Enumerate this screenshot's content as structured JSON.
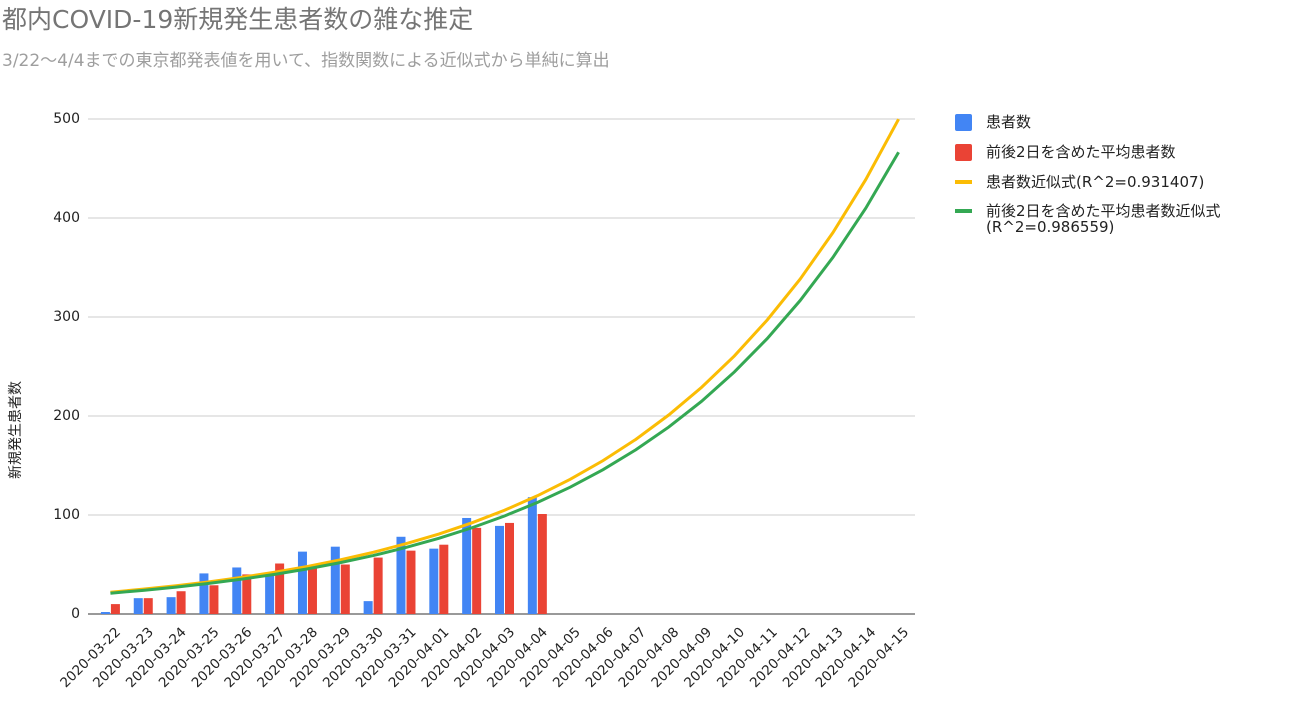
{
  "chart_data": {
    "type": "combo",
    "title": "都内COVID-19新規発生患者数の雑な推定",
    "subtitle": "3/22〜4/4までの東京都発表値を用いて、指数関数による近似式から単純に算出",
    "y_label": "新規発生患者数",
    "categories": [
      "2020-03-22",
      "2020-03-23",
      "2020-03-24",
      "2020-03-25",
      "2020-03-26",
      "2020-03-27",
      "2020-03-28",
      "2020-03-29",
      "2020-03-30",
      "2020-03-31",
      "2020-04-01",
      "2020-04-02",
      "2020-04-03",
      "2020-04-04",
      "2020-04-05",
      "2020-04-06",
      "2020-04-07",
      "2020-04-08",
      "2020-04-09",
      "2020-04-10",
      "2020-04-11",
      "2020-04-12",
      "2020-04-13",
      "2020-04-14",
      "2020-04-15"
    ],
    "series": [
      {
        "name": "患者数",
        "type": "bar",
        "color": "#4285f4",
        "values": [
          2,
          16,
          17,
          41,
          47,
          40,
          63,
          68,
          13,
          78,
          66,
          97,
          89,
          118,
          null,
          null,
          null,
          null,
          null,
          null,
          null,
          null,
          null,
          null,
          null
        ]
      },
      {
        "name": "前後2日を含めた平均患者数",
        "type": "bar",
        "color": "#ea4335",
        "values": [
          10,
          16,
          23,
          29,
          40,
          51,
          46,
          50,
          57,
          64,
          70,
          87,
          92,
          101,
          null,
          null,
          null,
          null,
          null,
          null,
          null,
          null,
          null,
          null,
          null
        ]
      },
      {
        "name": "患者数近似式(R^2=0.931407)",
        "type": "line",
        "color": "#fbbc04",
        "values": [
          22,
          25.1,
          28.5,
          32.5,
          37,
          42.2,
          48,
          54.7,
          62.3,
          71,
          80.8,
          92,
          104.8,
          119.4,
          136,
          154.9,
          176.4,
          201,
          228.9,
          260.7,
          297,
          338.2,
          385.2,
          438.8,
          499.8
        ]
      },
      {
        "name": "前後2日を含めた平均患者数近似式(R^2=0.986559)",
        "type": "line",
        "color": "#34a853",
        "values": [
          21,
          23.9,
          27.2,
          30.9,
          35.2,
          40,
          45.6,
          51.9,
          59,
          67.2,
          76.4,
          87,
          99,
          112.6,
          128.1,
          145.8,
          165.9,
          188.8,
          214.8,
          244.5,
          278.2,
          316.5,
          360.2,
          409.9,
          466.4
        ]
      }
    ],
    "ylim": [
      0,
      500
    ],
    "yticks": [
      0,
      100,
      200,
      300,
      400,
      500
    ],
    "grid": true,
    "legend": "right"
  }
}
